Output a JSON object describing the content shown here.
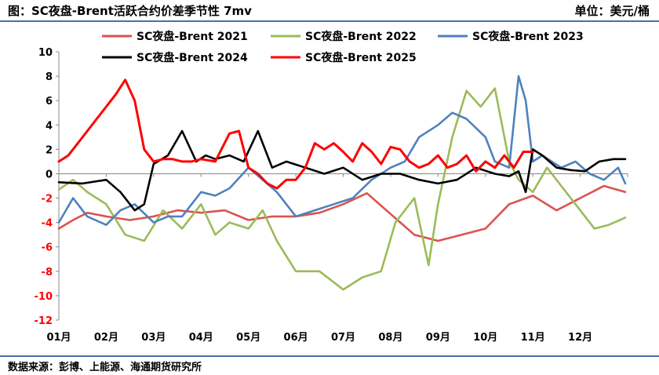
{
  "header": {
    "title": "图：SC夜盘-Brent活跃合约价差季节性 7mv",
    "unit": "单位：美元/桶"
  },
  "footer": {
    "source": "数据来源：彭博、上能源、海通期货研究所"
  },
  "chart_data": {
    "type": "line",
    "categories": [
      "01月",
      "02月",
      "03月",
      "04月",
      "05月",
      "06月",
      "07月",
      "08月",
      "09月",
      "10月",
      "11月",
      "12月"
    ],
    "ylim": [
      -12,
      10
    ],
    "yticks": [
      -12,
      -10,
      -8,
      -6,
      -4,
      -2,
      0,
      2,
      4,
      6,
      8,
      10
    ],
    "grid": false,
    "legend_placement": "top",
    "series": [
      {
        "name": "SC夜盘-Brent 2021",
        "color": "#d9534f",
        "x": [
          0,
          0.3,
          0.6,
          1,
          1.5,
          2,
          2.5,
          3,
          3.5,
          4,
          4.5,
          5,
          5.5,
          6,
          6.5,
          7,
          7.5,
          8,
          8.5,
          9,
          9.5,
          10,
          10.5,
          11,
          11.5,
          11.95
        ],
        "values": [
          -4.5,
          -3.8,
          -3.2,
          -3.5,
          -3.8,
          -3.5,
          -3.0,
          -3.2,
          -3.0,
          -3.8,
          -3.5,
          -3.5,
          -3.2,
          -2.5,
          -1.6,
          -3.3,
          -5.0,
          -5.5,
          -5.0,
          -4.5,
          -2.5,
          -1.8,
          -3.0,
          -2.0,
          -1.0,
          -1.5
        ]
      },
      {
        "name": "SC夜盘-Brent 2022",
        "color": "#9bbb59",
        "x": [
          0,
          0.3,
          0.6,
          1,
          1.4,
          1.8,
          2.2,
          2.6,
          3,
          3.3,
          3.6,
          4,
          4.3,
          4.6,
          5,
          5.5,
          6,
          6.4,
          6.8,
          7.1,
          7.5,
          7.8,
          8,
          8.3,
          8.6,
          8.9,
          9.2,
          9.5,
          9.7,
          10,
          10.3,
          10.6,
          11,
          11.3,
          11.6,
          11.95
        ],
        "values": [
          -1.3,
          -0.5,
          -1.5,
          -2.5,
          -5.0,
          -5.5,
          -3.0,
          -4.5,
          -2.5,
          -5.0,
          -4.0,
          -4.5,
          -3.0,
          -5.5,
          -8.0,
          -8.0,
          -9.5,
          -8.5,
          -8.0,
          -4.0,
          -2.0,
          -7.5,
          -2.5,
          3.0,
          6.8,
          5.5,
          7.0,
          1.0,
          -0.5,
          -1.5,
          0.5,
          -1.0,
          -3.0,
          -4.5,
          -4.2,
          -3.6
        ]
      },
      {
        "name": "SC夜盘-Brent 2023",
        "color": "#4f81bd",
        "x": [
          0,
          0.3,
          0.6,
          1,
          1.3,
          1.6,
          2,
          2.3,
          2.6,
          3,
          3.3,
          3.6,
          4,
          4.3,
          4.6,
          5,
          5.4,
          5.8,
          6.2,
          6.6,
          7,
          7.3,
          7.6,
          8,
          8.3,
          8.6,
          9,
          9.2,
          9.5,
          9.7,
          9.85,
          10,
          10.2,
          10.4,
          10.6,
          10.9,
          11.2,
          11.5,
          11.8,
          11.95
        ],
        "values": [
          -4.0,
          -2.0,
          -3.5,
          -4.2,
          -3.0,
          -2.5,
          -4.0,
          -3.5,
          -3.5,
          -1.5,
          -1.8,
          -1.2,
          0.5,
          -0.5,
          -1.5,
          -3.5,
          -3.0,
          -2.5,
          -2.0,
          -0.5,
          0.5,
          1.0,
          3.0,
          4.0,
          5.0,
          4.5,
          3.0,
          1.0,
          0.5,
          8.0,
          6.0,
          1.0,
          1.5,
          1.0,
          0.5,
          1.0,
          0.0,
          -0.5,
          0.5,
          -0.8
        ]
      },
      {
        "name": "SC夜盘-Brent 2024",
        "color": "#000000",
        "x": [
          0,
          0.5,
          1,
          1.3,
          1.6,
          1.8,
          2,
          2.3,
          2.6,
          2.9,
          3.1,
          3.3,
          3.6,
          3.9,
          4.2,
          4.5,
          4.8,
          5.2,
          5.6,
          6,
          6.4,
          6.8,
          7.2,
          7.6,
          8,
          8.4,
          8.8,
          9.2,
          9.5,
          9.7,
          9.85,
          10,
          10.2,
          10.5,
          10.8,
          11.1,
          11.4,
          11.7,
          11.95
        ],
        "values": [
          -0.7,
          -0.8,
          -0.5,
          -1.5,
          -3.0,
          -2.5,
          0.8,
          1.5,
          3.5,
          1.0,
          1.5,
          1.2,
          1.5,
          1.0,
          3.5,
          0.5,
          1.0,
          0.5,
          0.0,
          0.5,
          -0.5,
          0.0,
          0.0,
          -0.5,
          -0.8,
          -0.5,
          0.5,
          0.0,
          -0.2,
          0.2,
          -1.5,
          2.0,
          1.5,
          0.5,
          0.3,
          0.2,
          1.0,
          1.2,
          1.2
        ]
      },
      {
        "name": "SC夜盘-Brent 2025",
        "color": "#ff0000",
        "x": [
          0,
          0.2,
          0.4,
          0.6,
          0.8,
          1,
          1.2,
          1.4,
          1.6,
          1.8,
          2,
          2.2,
          2.4,
          2.6,
          2.8,
          3,
          3.3,
          3.6,
          3.8,
          4,
          4.2,
          4.4,
          4.6,
          4.8,
          5,
          5.2,
          5.4,
          5.6,
          5.8,
          6,
          6.2,
          6.4,
          6.6,
          6.8,
          7,
          7.2,
          7.4,
          7.6,
          7.8,
          8,
          8.2,
          8.4,
          8.6,
          8.8,
          9,
          9.2,
          9.4,
          9.6,
          9.8,
          10
        ],
        "values": [
          1.0,
          1.5,
          2.5,
          3.5,
          4.5,
          5.5,
          6.5,
          7.7,
          6.0,
          2.0,
          1.0,
          1.2,
          1.2,
          1.0,
          1.0,
          1.2,
          1.0,
          3.3,
          3.5,
          0.5,
          0.0,
          -0.8,
          -1.2,
          -0.5,
          -0.5,
          0.5,
          2.5,
          2.0,
          2.5,
          1.8,
          1.0,
          2.5,
          1.8,
          0.8,
          2.2,
          2.0,
          1.0,
          0.5,
          0.8,
          1.5,
          0.5,
          0.8,
          1.5,
          0.2,
          1.0,
          0.5,
          1.5,
          0.5,
          1.8,
          1.8
        ]
      }
    ]
  }
}
